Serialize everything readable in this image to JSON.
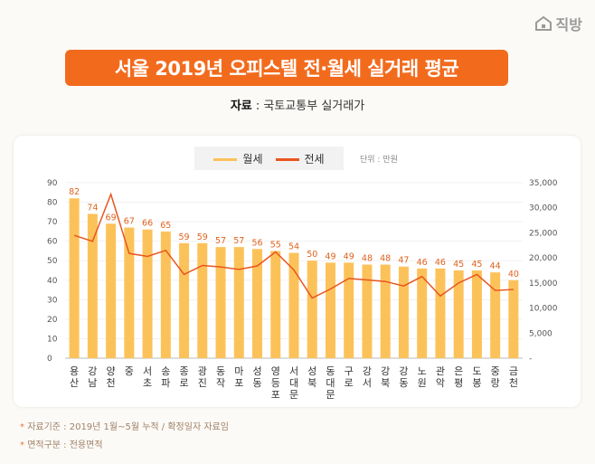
{
  "logo": {
    "text": "직방",
    "icon": "house-icon"
  },
  "title": "서울 2019년 오피스텔 전·월세 실거래 평균",
  "source": {
    "label": "자료",
    "value": "국토교통부 실거래가"
  },
  "chart_data": {
    "type": "bar+line",
    "unit_note": "단위 : 만원",
    "legend_position": "top",
    "categories": [
      "용산",
      "강남",
      "양천",
      "중",
      "서초",
      "송파",
      "종로",
      "광진",
      "동작",
      "마포",
      "성동",
      "영등포",
      "서대문",
      "성북",
      "동대문",
      "구로",
      "강서",
      "강북",
      "강동",
      "노원",
      "관악",
      "은평",
      "도봉",
      "중랑",
      "금천"
    ],
    "series": [
      {
        "name": "월세",
        "type": "bar",
        "axis": "left",
        "color": "#fcc25a",
        "values": [
          82,
          74,
          69,
          67,
          66,
          65,
          59,
          59,
          57,
          57,
          56,
          55,
          54,
          50,
          49,
          49,
          48,
          48,
          47,
          46,
          46,
          45,
          45,
          44,
          40
        ]
      },
      {
        "name": "전세",
        "type": "line",
        "axis": "right",
        "color": "#e8561e",
        "values": [
          24500,
          23300,
          32700,
          20900,
          20300,
          21500,
          16700,
          18500,
          18200,
          17700,
          18400,
          21200,
          17600,
          12000,
          13800,
          15900,
          15600,
          15300,
          14400,
          16300,
          12400,
          15000,
          16700,
          13500,
          13700
        ]
      }
    ],
    "left_axis": {
      "ylim": [
        0,
        90
      ],
      "ticks": [
        "0",
        "10",
        "20",
        "30",
        "40",
        "50",
        "60",
        "70",
        "80",
        "90"
      ]
    },
    "right_axis": {
      "ylim": [
        0,
        35000
      ],
      "ticks": [
        "-",
        "5,000",
        "10,000",
        "15,000",
        "20,000",
        "25,000",
        "30,000",
        "35,000"
      ]
    },
    "grid": true
  },
  "footnotes": [
    "자료기준 : 2019년 1월~5월 누적 / 확정일자 자료임",
    "면적구분 : 전용면적"
  ],
  "footnote_mark": "*"
}
